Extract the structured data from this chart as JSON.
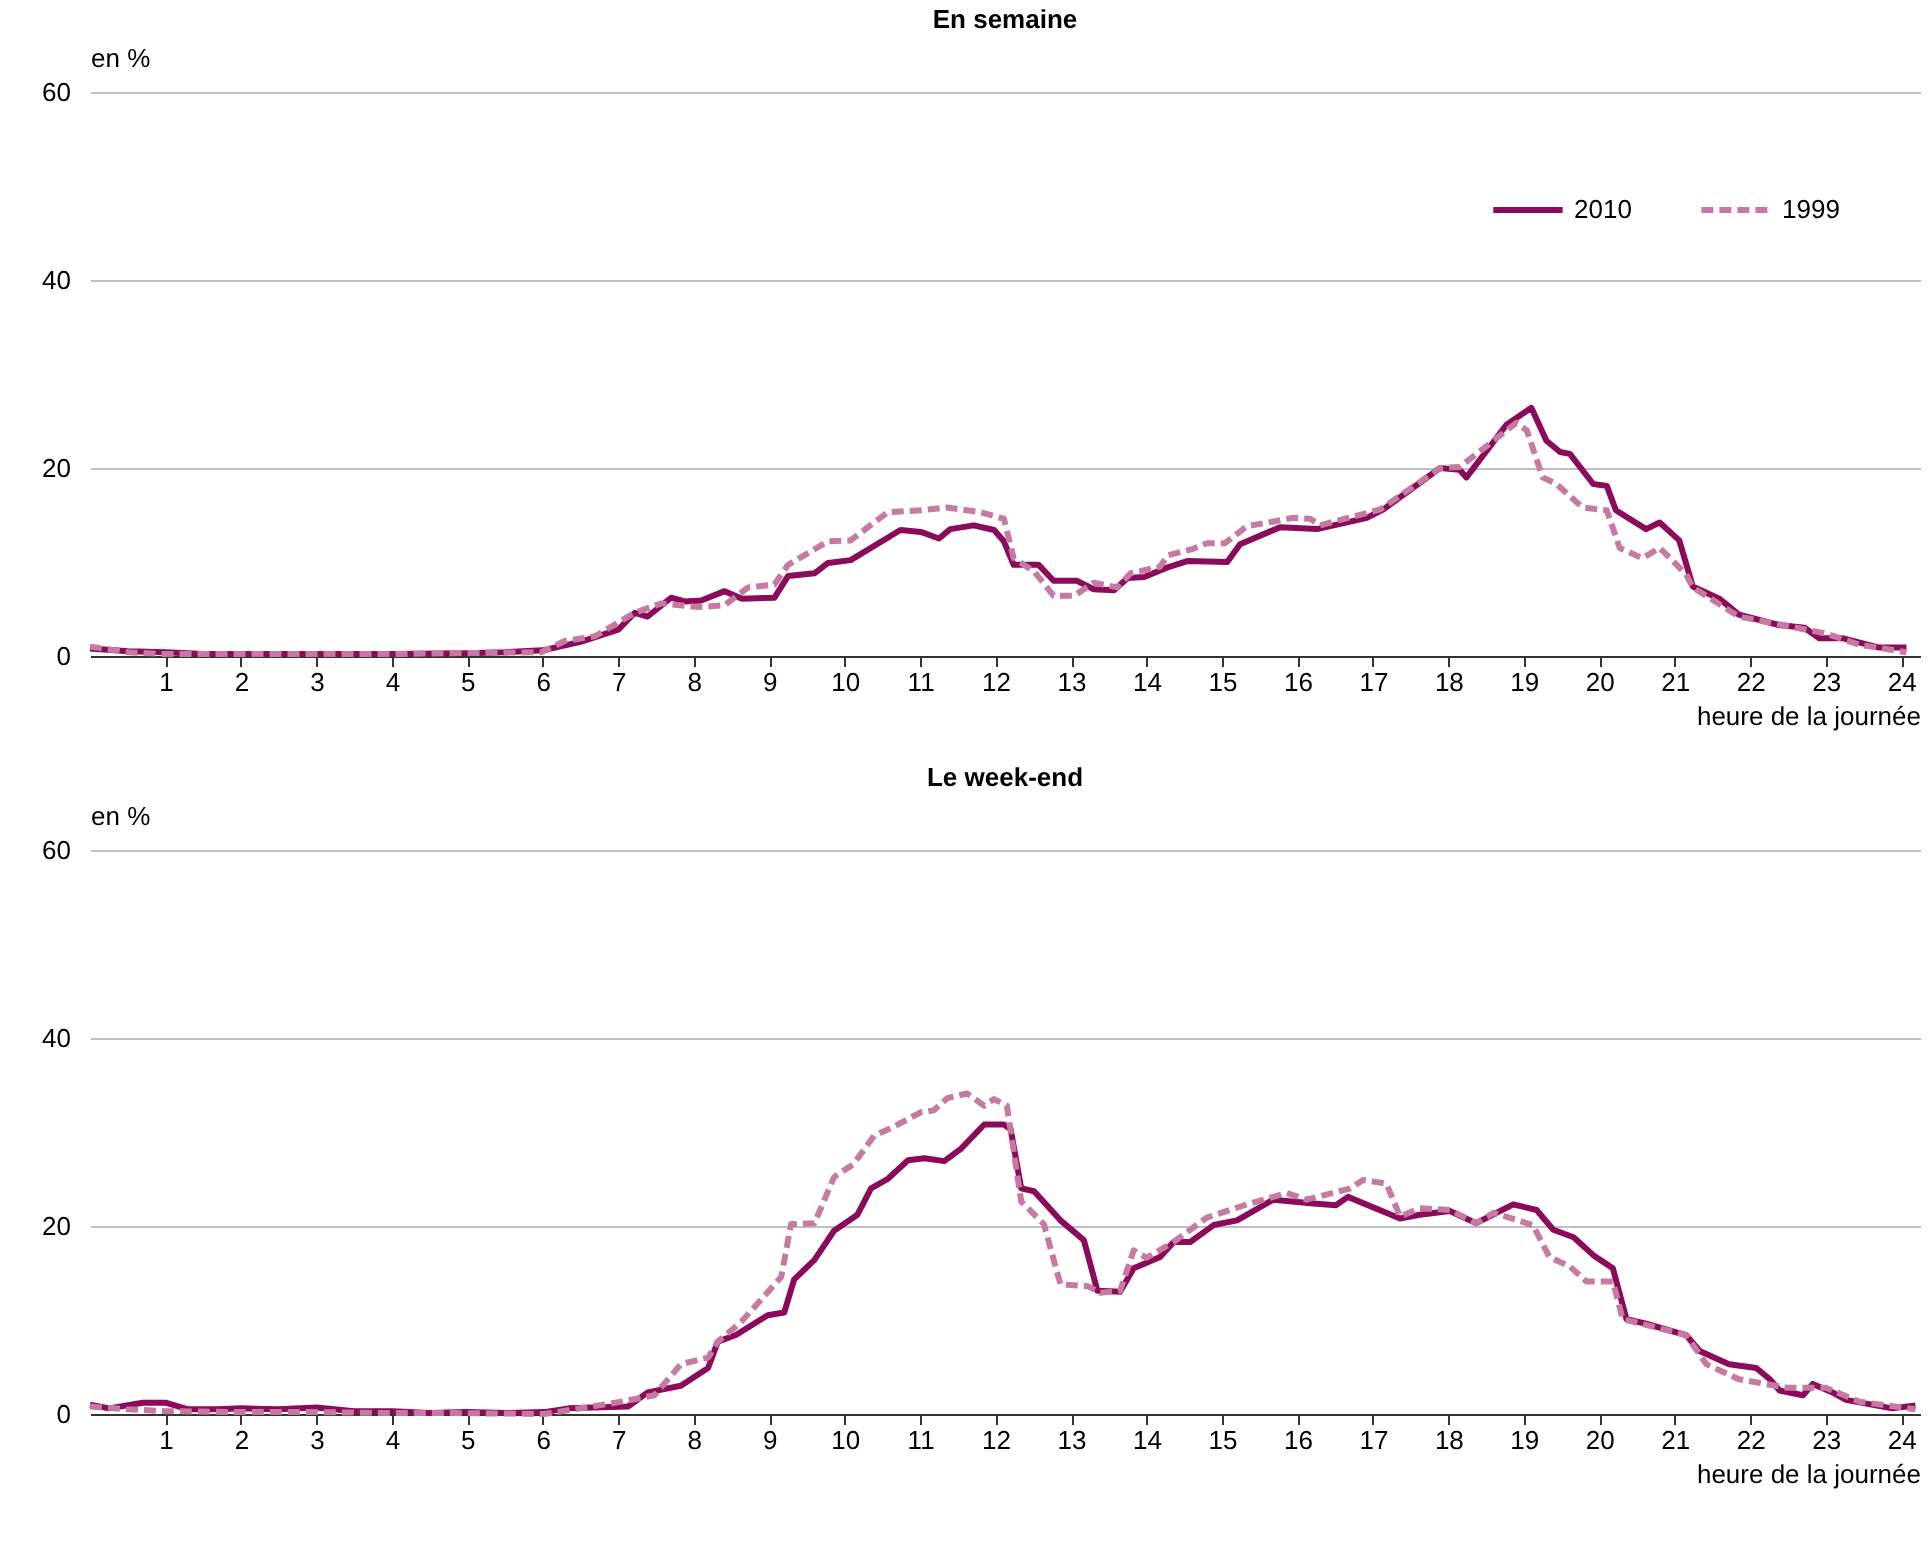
{
  "chart_data": [
    {
      "type": "line",
      "title": "En semaine",
      "xlabel": "heure de la journée",
      "ylabel": "en %",
      "xlim": [
        0,
        24.25
      ],
      "xticks": [
        1,
        2,
        3,
        4,
        5,
        6,
        7,
        8,
        9,
        10,
        11,
        12,
        13,
        14,
        15,
        16,
        17,
        18,
        19,
        20,
        21,
        22,
        23,
        24
      ],
      "ylim": [
        0,
        60
      ],
      "yticks": [
        0,
        20,
        40,
        60
      ],
      "grid": "y",
      "legend": "top right",
      "series": [
        {
          "name": "2010",
          "color": "#8b0a5a",
          "line_style": "solid",
          "x": [
            0,
            0.5,
            1,
            1.5,
            2,
            3,
            4,
            5,
            5.5,
            6,
            6.5,
            7,
            7.22,
            7.39,
            7.7,
            7.88,
            8.1,
            8.41,
            8.64,
            9.07,
            9.25,
            9.6,
            9.78,
            10.08,
            10.74,
            11.01,
            11.25,
            11.4,
            11.71,
            11.98,
            12.11,
            12.24,
            12.57,
            12.77,
            13.08,
            13.3,
            13.57,
            13.75,
            13.97,
            14.27,
            14.54,
            15.07,
            15.24,
            15.77,
            16.26,
            16.92,
            17.14,
            17.89,
            18.15,
            18.24,
            18.77,
            19.1,
            19.3,
            19.48,
            19.61,
            19.92,
            20.1,
            20.22,
            20.62,
            20.8,
            21.06,
            21.24,
            21.59,
            21.85,
            22.38,
            22.72,
            22.91,
            23.22,
            23.71,
            24.07
          ],
          "values": [
            0.8,
            0.5,
            0.4,
            0.2,
            0.2,
            0.2,
            0.2,
            0.3,
            0.4,
            0.6,
            1.5,
            2.8,
            4.6,
            4.2,
            6.2,
            5.8,
            5.9,
            6.9,
            6.1,
            6.2,
            8.5,
            8.8,
            9.9,
            10.2,
            13.4,
            13.2,
            12.5,
            13.5,
            13.9,
            13.4,
            12.2,
            9.7,
            9.7,
            8.0,
            8.0,
            7.1,
            7.0,
            8.3,
            8.4,
            9.4,
            10.1,
            10.0,
            11.9,
            13.7,
            13.5,
            14.7,
            15.6,
            20.0,
            19.8,
            19.0,
            24.6,
            26.4,
            22.9,
            21.7,
            21.5,
            18.3,
            18.1,
            15.5,
            13.5,
            14.2,
            12.3,
            7.4,
            6.1,
            4.4,
            3.3,
            3.0,
            1.9,
            1.9,
            0.9,
            0.9
          ]
        },
        {
          "name": "1999",
          "color": "#c67aa1",
          "line_style": "dashed",
          "x": [
            0,
            0.5,
            1,
            2,
            3,
            4,
            4.8,
            5.98,
            6.29,
            6.69,
            7.22,
            7.57,
            8.06,
            8.41,
            8.72,
            9.07,
            9.25,
            9.78,
            10.08,
            10.57,
            11.01,
            11.36,
            11.8,
            12.11,
            12.24,
            12.51,
            12.77,
            13.04,
            13.3,
            13.61,
            13.79,
            14.18,
            14.28,
            14.62,
            14.8,
            15.04,
            15.33,
            15.95,
            16.17,
            16.3,
            17.1,
            17.89,
            18.15,
            18.9,
            19.04,
            19.25,
            19.43,
            19.78,
            20.1,
            20.27,
            20.57,
            20.8,
            21.15,
            21.24,
            21.85,
            22.55,
            23.0,
            23.45,
            24.07
          ],
          "values": [
            1.0,
            0.4,
            0.2,
            0.2,
            0.2,
            0.2,
            0.3,
            0.4,
            1.6,
            2.1,
            4.6,
            5.6,
            5.2,
            5.4,
            7.3,
            7.6,
            9.7,
            12.2,
            12.3,
            15.3,
            15.5,
            15.8,
            15.3,
            14.6,
            10.4,
            9.0,
            6.4,
            6.4,
            7.8,
            7.3,
            8.8,
            9.5,
            10.7,
            11.4,
            12.0,
            12.0,
            13.8,
            14.7,
            14.6,
            13.9,
            15.6,
            20.0,
            20.1,
            24.8,
            24.0,
            19.0,
            18.3,
            15.8,
            15.5,
            11.5,
            10.4,
            11.5,
            8.7,
            7.3,
            4.2,
            3.1,
            2.4,
            1.2,
            0.4
          ]
        }
      ]
    },
    {
      "type": "line",
      "title": "Le week-end",
      "xlabel": "heure de la journée",
      "ylabel": "en %",
      "xlim": [
        0,
        24.25
      ],
      "xticks": [
        1,
        2,
        3,
        4,
        5,
        6,
        7,
        8,
        9,
        10,
        11,
        12,
        13,
        14,
        15,
        16,
        17,
        18,
        19,
        20,
        21,
        22,
        23,
        24
      ],
      "ylim": [
        0,
        60
      ],
      "yticks": [
        0,
        20,
        40,
        60
      ],
      "grid": "y",
      "series": [
        {
          "color": "#8b0a5a",
          "line_style": "solid",
          "x": [
            0,
            0.25,
            0.7,
            1,
            1.3,
            1.7,
            2,
            2.5,
            3,
            3.5,
            4,
            4.5,
            5,
            5.5,
            6.02,
            6.34,
            7.13,
            7.39,
            7.83,
            8.19,
            8.32,
            8.56,
            8.98,
            9.2,
            9.33,
            9.6,
            9.86,
            10.17,
            10.35,
            10.57,
            10.84,
            11.06,
            11.32,
            11.54,
            11.85,
            12.11,
            12.2,
            12.34,
            12.51,
            12.86,
            13.17,
            13.35,
            13.65,
            13.83,
            14.18,
            14.36,
            14.58,
            14.89,
            15.2,
            15.68,
            16.21,
            16.51,
            16.67,
            17.36,
            17.62,
            18.02,
            18.37,
            18.86,
            19.17,
            19.39,
            19.66,
            19.92,
            20.18,
            20.36,
            20.62,
            21.15,
            21.33,
            21.72,
            22.08,
            22.26,
            22.39,
            22.7,
            22.83,
            23.09,
            23.27,
            23.88,
            24.19
          ],
          "values": [
            1.0,
            0.6,
            1.2,
            1.2,
            0.5,
            0.5,
            0.6,
            0.5,
            0.7,
            0.3,
            0.3,
            0.1,
            0.2,
            0.1,
            0.2,
            0.6,
            0.8,
            2.3,
            3.0,
            4.9,
            7.7,
            8.4,
            10.5,
            10.8,
            14.3,
            16.4,
            19.5,
            21.2,
            24.0,
            25.0,
            27.0,
            27.2,
            26.9,
            28.2,
            30.8,
            30.8,
            30.3,
            24.0,
            23.7,
            20.6,
            18.5,
            13.1,
            13.0,
            15.5,
            16.7,
            18.3,
            18.3,
            20.1,
            20.6,
            22.8,
            22.4,
            22.2,
            23.1,
            20.8,
            21.2,
            21.6,
            20.3,
            22.3,
            21.7,
            19.6,
            18.8,
            16.9,
            15.5,
            10.1,
            9.6,
            8.4,
            6.7,
            5.3,
            4.9,
            3.7,
            2.5,
            2.0,
            3.2,
            2.3,
            1.5,
            0.6,
            0.9
          ]
        },
        {
          "color": "#c67aa1",
          "line_style": "dashed",
          "x": [
            0,
            0.5,
            1,
            2,
            3,
            4,
            4.84,
            6.02,
            7.04,
            7.48,
            7.83,
            8.19,
            8.32,
            8.63,
            9.16,
            9.29,
            9.6,
            9.86,
            10.12,
            10.39,
            10.66,
            11.01,
            11.18,
            11.36,
            11.62,
            11.85,
            11.98,
            12.15,
            12.34,
            12.64,
            12.86,
            13.22,
            13.39,
            13.65,
            13.83,
            14.0,
            14.36,
            14.8,
            15.33,
            15.86,
            16.12,
            16.7,
            16.87,
            17.18,
            17.36,
            17.62,
            18.02,
            18.37,
            18.6,
            19.12,
            19.34,
            19.61,
            19.83,
            20.18,
            20.31,
            21.15,
            21.42,
            21.85,
            22.48,
            23.0,
            23.45,
            24.19
          ],
          "values": [
            0.8,
            0.5,
            0.3,
            0.2,
            0.2,
            0.1,
            0.1,
            0.0,
            1.3,
            2.0,
            5.3,
            6.0,
            7.7,
            9.8,
            14.6,
            20.2,
            20.3,
            25.2,
            26.6,
            29.6,
            30.6,
            32.1,
            32.3,
            33.6,
            34.1,
            32.8,
            33.5,
            32.8,
            22.6,
            20.2,
            13.8,
            13.6,
            12.9,
            13.1,
            17.4,
            16.6,
            18.3,
            20.9,
            22.3,
            23.5,
            22.8,
            24.0,
            24.9,
            24.5,
            21.0,
            21.9,
            21.7,
            20.3,
            21.4,
            20.1,
            16.7,
            15.7,
            14.1,
            14.1,
            10.1,
            8.4,
            5.3,
            3.7,
            2.8,
            2.8,
            1.3,
            0.5
          ]
        }
      ]
    }
  ]
}
